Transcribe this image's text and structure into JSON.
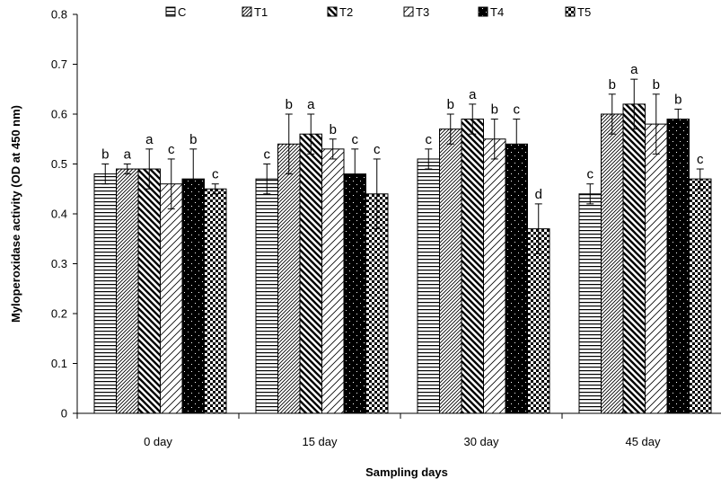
{
  "chart_data": {
    "type": "bar",
    "title": "",
    "xlabel": "Sampling days",
    "ylabel": "Myloperoxidase activity (OD at 450 nm)",
    "ylim": [
      0,
      0.8
    ],
    "yticks": [
      "0",
      "0.1",
      "0.2",
      "0.3",
      "0.4",
      "0.5",
      "0.6",
      "0.7",
      "0.8"
    ],
    "categories": [
      "0 day",
      "15 day",
      "30 day",
      "45 day"
    ],
    "legend_position": "top",
    "grid": false,
    "series": [
      {
        "name": "C",
        "pattern": "hlines",
        "values": [
          0.48,
          0.47,
          0.51,
          0.44
        ],
        "errors": [
          0.02,
          0.03,
          0.02,
          0.02
        ],
        "labels": [
          "b",
          "c",
          "c",
          "c"
        ]
      },
      {
        "name": "T1",
        "pattern": "dense-diag-right",
        "values": [
          0.49,
          0.54,
          0.57,
          0.6
        ],
        "errors": [
          0.01,
          0.06,
          0.03,
          0.04
        ],
        "labels": [
          "a",
          "b",
          "b",
          "b"
        ]
      },
      {
        "name": "T2",
        "pattern": "bold-diag-left",
        "values": [
          0.49,
          0.56,
          0.59,
          0.62
        ],
        "errors": [
          0.04,
          0.04,
          0.03,
          0.05
        ],
        "labels": [
          "a",
          "a",
          "a",
          "a"
        ]
      },
      {
        "name": "T3",
        "pattern": "sparse-diag-right",
        "values": [
          0.46,
          0.53,
          0.55,
          0.58
        ],
        "errors": [
          0.05,
          0.02,
          0.04,
          0.06
        ],
        "labels": [
          "c",
          "b",
          "b",
          "b"
        ]
      },
      {
        "name": "T4",
        "pattern": "black-dots",
        "values": [
          0.47,
          0.48,
          0.54,
          0.59
        ],
        "errors": [
          0.06,
          0.05,
          0.05,
          0.02
        ],
        "labels": [
          "b",
          "c",
          "c",
          "b"
        ]
      },
      {
        "name": "T5",
        "pattern": "checker",
        "values": [
          0.45,
          0.44,
          0.37,
          0.47
        ],
        "errors": [
          0.01,
          0.07,
          0.05,
          0.02
        ],
        "labels": [
          "c",
          "c",
          "d",
          "c"
        ]
      }
    ]
  }
}
